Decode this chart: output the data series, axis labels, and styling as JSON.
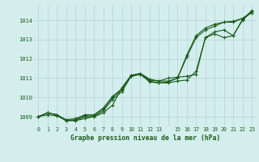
{
  "title": "Graphe pression niveau de la mer (hPa)",
  "bg_color": "#d4eeee",
  "grid_color": "#b8d8d8",
  "line_color": "#1a5c1a",
  "xlim": [
    -0.5,
    23.5
  ],
  "ylim": [
    1008.5,
    1014.8
  ],
  "yticks": [
    1009,
    1010,
    1011,
    1012,
    1013,
    1014
  ],
  "xtick_labels": [
    "0",
    "1",
    "2",
    "3",
    "4",
    "5",
    "6",
    "7",
    "8",
    "9",
    "10",
    "11",
    "12",
    "13",
    "",
    "15",
    "16",
    "17",
    "18",
    "19",
    "20",
    "21",
    "22",
    "23"
  ],
  "series": [
    [
      1009.0,
      1009.2,
      1009.1,
      1008.8,
      1008.8,
      1009.0,
      1009.0,
      1009.2,
      1009.6,
      1010.5,
      1011.15,
      1011.2,
      1010.9,
      1010.85,
      1010.85,
      1011.0,
      1012.2,
      1013.2,
      1013.6,
      1013.8,
      1013.9,
      1013.9,
      1014.1,
      1014.4
    ],
    [
      1009.0,
      1009.1,
      1009.05,
      1008.8,
      1008.8,
      1008.9,
      1009.0,
      1009.3,
      1009.9,
      1010.3,
      1011.1,
      1011.2,
      1010.85,
      1010.75,
      1010.8,
      1011.0,
      1012.1,
      1013.1,
      1013.5,
      1013.7,
      1013.9,
      1013.95,
      1014.1,
      1014.4
    ],
    [
      1009.0,
      1009.2,
      1009.1,
      1008.8,
      1008.85,
      1009.05,
      1009.05,
      1009.4,
      1010.0,
      1010.4,
      1011.15,
      1011.25,
      1010.95,
      1010.85,
      1011.0,
      1011.05,
      1011.1,
      1011.2,
      1013.1,
      1013.3,
      1013.1,
      1013.2,
      1014.05,
      1014.5
    ],
    [
      1009.0,
      1009.2,
      1009.1,
      1008.85,
      1008.9,
      1009.1,
      1009.1,
      1009.45,
      1010.05,
      1010.45,
      1011.1,
      1011.2,
      1010.8,
      1010.75,
      1010.75,
      1010.85,
      1010.9,
      1011.35,
      1013.1,
      1013.4,
      1013.5,
      1013.2,
      1014.0,
      1014.45
    ]
  ]
}
